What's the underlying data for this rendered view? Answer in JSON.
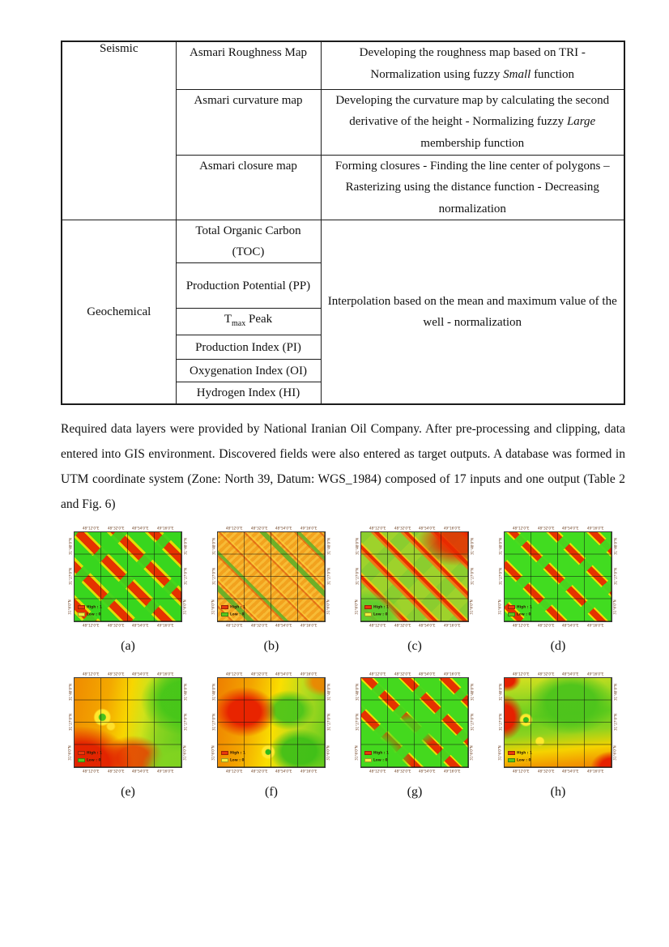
{
  "table": {
    "groups": [
      {
        "category": "Seismic",
        "rows": [
          {
            "layer": {
              "pre": "Asmari Roughness Map",
              "sub": "",
              "post": ""
            },
            "method": {
              "pre": "Developing the roughness map based on TRI - Normalization using fuzzy ",
              "em": "Small",
              "post": " function"
            }
          },
          {
            "layer": {
              "pre": "Asmari curvature map",
              "sub": "",
              "post": ""
            },
            "method": {
              "pre": "Developing the curvature map by calculating the second derivative of the height - Normalizing fuzzy ",
              "em": "Large",
              "post": " membership function"
            }
          },
          {
            "layer": {
              "pre": "Asmari closure map",
              "sub": "",
              "post": ""
            },
            "method": {
              "pre": "Forming closures - Finding the line center of polygons – Rasterizing using the distance function - Decreasing normalization",
              "em": "",
              "post": ""
            }
          }
        ]
      },
      {
        "category": "Geochemical",
        "shared_method": {
          "pre": "Interpolation based on the mean and maximum value of the well - normalization",
          "em": "",
          "post": ""
        },
        "rows": [
          {
            "layer": {
              "pre": "Total Organic Carbon (TOC)",
              "sub": "",
              "post": ""
            }
          },
          {
            "layer": {
              "pre": "Production Potential (PP)",
              "sub": "",
              "post": ""
            }
          },
          {
            "layer": {
              "pre": "T",
              "sub": "max",
              "post": " Peak"
            }
          },
          {
            "layer": {
              "pre": "Production Index (PI)",
              "sub": "",
              "post": ""
            }
          },
          {
            "layer": {
              "pre": "Oxygenation Index (OI)",
              "sub": "",
              "post": ""
            }
          },
          {
            "layer": {
              "pre": "Hydrogen Index (HI)",
              "sub": "",
              "post": ""
            }
          }
        ]
      }
    ]
  },
  "paragraph": {
    "text": "Required data layers were provided by National Iranian Oil Company. After pre-processing and clipping, data entered into GIS environment. Discovered fields were also entered as target outputs. A database was formed in UTM coordinate system (Zone: North 39, Datum: WGS_1984) composed of 17 inputs and one output (Table 2 and Fig. 6)"
  },
  "figure": {
    "x_ticks": [
      "48°12'0\"E",
      "48°32'0\"E",
      "48°54'0\"E",
      "49°16'0\"E"
    ],
    "y_ticks": [
      "31°48'0\"N",
      "31°27'0\"N",
      "31°6'0\"N"
    ],
    "legend": {
      "high_label": "High : 1",
      "low_label": "Low : 0"
    },
    "colors": {
      "high": "#e8380d",
      "green": "#44d91e",
      "yellow": "#f2ef3e",
      "orange": "#f2a21e"
    },
    "maps": [
      {
        "id": "a",
        "caption": "(a)",
        "high_color": "#e8380d",
        "low_color": "#f2ef3e"
      },
      {
        "id": "b",
        "caption": "(b)",
        "high_color": "#e8380d",
        "low_color": "#58c81e"
      },
      {
        "id": "c",
        "caption": "(c)",
        "high_color": "#e8380d",
        "low_color": "#f2ef3e"
      },
      {
        "id": "d",
        "caption": "(d)",
        "high_color": "#e8380d",
        "low_color": "#58c81e"
      },
      {
        "id": "e",
        "caption": "(e)",
        "high_color": "#e8380d",
        "low_color": "#58c81e"
      },
      {
        "id": "f",
        "caption": "(f)",
        "high_color": "#e8380d",
        "low_color": "#f2ef3e"
      },
      {
        "id": "g",
        "caption": "(g)",
        "high_color": "#e8380d",
        "low_color": "#f2ef3e"
      },
      {
        "id": "h",
        "caption": "(h)",
        "high_color": "#e8380d",
        "low_color": "#58c81e"
      }
    ]
  }
}
